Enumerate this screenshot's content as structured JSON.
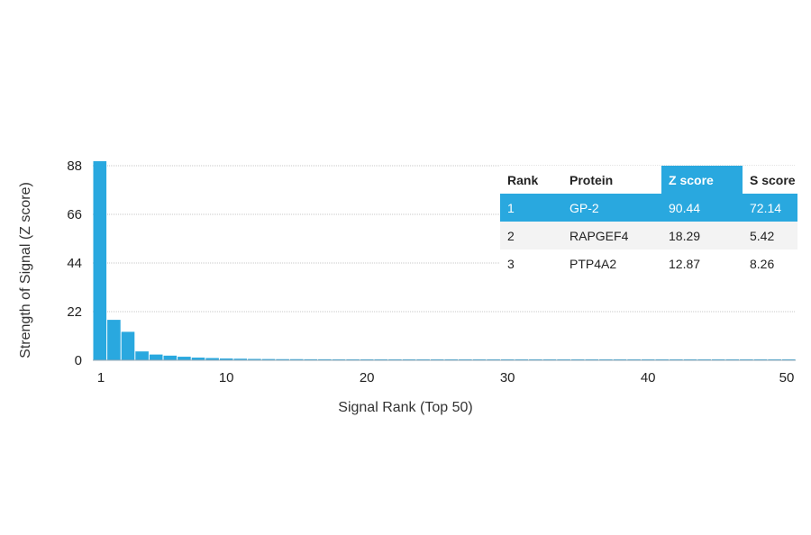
{
  "chart_data": {
    "type": "bar",
    "xlabel": "Signal Rank (Top 50)",
    "ylabel": "Strength of Signal (Z score)",
    "x_ticks": [
      "1",
      "10",
      "20",
      "30",
      "40",
      "50"
    ],
    "y_ticks": [
      "0",
      "22",
      "44",
      "66",
      "88"
    ],
    "ylim": [
      0,
      88
    ],
    "xlim": [
      1,
      50
    ],
    "bar_color": "#29a8df",
    "categories": [
      1,
      2,
      3,
      4,
      5,
      6,
      7,
      8,
      9,
      10,
      11,
      12,
      13,
      14,
      15,
      16,
      17,
      18,
      19,
      20,
      21,
      22,
      23,
      24,
      25,
      26,
      27,
      28,
      29,
      30,
      31,
      32,
      33,
      34,
      35,
      36,
      37,
      38,
      39,
      40,
      41,
      42,
      43,
      44,
      45,
      46,
      47,
      48,
      49,
      50
    ],
    "values": [
      90.44,
      18.29,
      12.87,
      4.0,
      2.6,
      2.1,
      1.6,
      1.2,
      1.0,
      0.8,
      0.7,
      0.6,
      0.55,
      0.5,
      0.5,
      0.45,
      0.45,
      0.4,
      0.4,
      0.4,
      0.35,
      0.35,
      0.35,
      0.35,
      0.3,
      0.3,
      0.3,
      0.3,
      0.3,
      0.3,
      0.3,
      0.3,
      0.3,
      0.3,
      0.3,
      0.3,
      0.3,
      0.3,
      0.3,
      0.3,
      0.3,
      0.3,
      0.3,
      0.3,
      0.3,
      0.3,
      0.3,
      0.3,
      0.3,
      0.3
    ],
    "gridlines": true
  },
  "table": {
    "headers": [
      "Rank",
      "Protein",
      "Z score",
      "S score"
    ],
    "rows": [
      [
        "1",
        "GP-2",
        "90.44",
        "72.14"
      ],
      [
        "2",
        "RAPGEF4",
        "18.29",
        "5.42"
      ],
      [
        "3",
        "PTP4A2",
        "12.87",
        "8.26"
      ]
    ],
    "highlight_color": "#29a8df"
  }
}
